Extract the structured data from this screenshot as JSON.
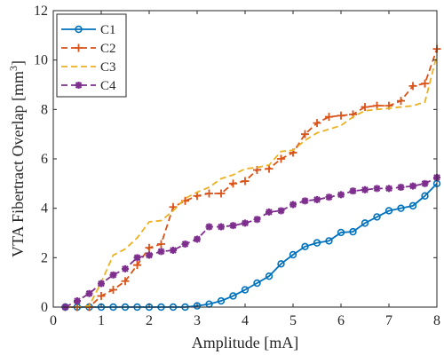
{
  "chart_data": {
    "type": "line",
    "title": "",
    "xlabel": "Amplitude [mA]",
    "ylabel_main": "VTA Fibertract Overlap [mm",
    "ylabel_sup": "3",
    "ylabel_close": "]",
    "xlim": [
      0,
      8
    ],
    "ylim": [
      0,
      12
    ],
    "xticks": [
      0,
      1,
      2,
      3,
      4,
      5,
      6,
      7,
      8
    ],
    "yticks": [
      0,
      2,
      4,
      6,
      8,
      10,
      12
    ],
    "xtick_labels": [
      "0",
      "1",
      "2",
      "3",
      "4",
      "5",
      "6",
      "7",
      "8"
    ],
    "ytick_labels": [
      "0",
      "2",
      "4",
      "6",
      "8",
      "10",
      "12"
    ],
    "grid": false,
    "legend_position": "top-left",
    "series": [
      {
        "name": "C1",
        "color": "#0072BD",
        "marker": "circle",
        "dash": "solid",
        "x": [
          0.25,
          0.5,
          0.75,
          1.0,
          1.25,
          1.5,
          1.75,
          2.0,
          2.25,
          2.5,
          2.75,
          3.0,
          3.25,
          3.5,
          3.75,
          4.0,
          4.25,
          4.5,
          4.75,
          5.0,
          5.25,
          5.5,
          5.75,
          6.0,
          6.25,
          6.5,
          6.75,
          7.0,
          7.25,
          7.5,
          7.75,
          8.0
        ],
        "y": [
          0,
          0,
          0,
          0,
          0,
          0,
          0,
          0,
          0,
          0,
          0,
          0.05,
          0.12,
          0.25,
          0.45,
          0.7,
          0.97,
          1.25,
          1.75,
          2.12,
          2.45,
          2.6,
          2.68,
          3.02,
          3.05,
          3.4,
          3.65,
          3.9,
          4.0,
          4.1,
          4.5,
          5.0
        ]
      },
      {
        "name": "C2",
        "color": "#D95319",
        "marker": "plus",
        "dash": "dashed",
        "x": [
          0.25,
          0.5,
          0.75,
          1.0,
          1.25,
          1.5,
          1.75,
          2.0,
          2.25,
          2.5,
          2.75,
          3.0,
          3.25,
          3.5,
          3.75,
          4.0,
          4.25,
          4.5,
          4.75,
          5.0,
          5.25,
          5.5,
          5.75,
          6.0,
          6.25,
          6.5,
          6.75,
          7.0,
          7.25,
          7.5,
          7.75,
          8.0
        ],
        "y": [
          0,
          0,
          0,
          0.45,
          0.7,
          1.05,
          1.7,
          2.4,
          2.55,
          4.05,
          4.3,
          4.5,
          4.6,
          4.6,
          5.0,
          5.1,
          5.55,
          5.6,
          6.0,
          6.25,
          7.0,
          7.45,
          7.7,
          7.75,
          7.8,
          8.1,
          8.15,
          8.15,
          8.35,
          8.95,
          9.05,
          10.45
        ]
      },
      {
        "name": "C3",
        "color": "#EDB120",
        "marker": "none",
        "dash": "dashed",
        "x": [
          0.25,
          0.5,
          0.75,
          1.0,
          1.25,
          1.5,
          1.75,
          2.0,
          2.25,
          2.5,
          2.75,
          3.0,
          3.25,
          3.5,
          3.75,
          4.0,
          4.25,
          4.5,
          4.75,
          5.0,
          5.25,
          5.5,
          5.75,
          6.0,
          6.25,
          6.5,
          6.75,
          7.0,
          7.25,
          7.5,
          7.75,
          8.0
        ],
        "y": [
          0,
          0,
          0.05,
          1.0,
          2.1,
          2.35,
          2.8,
          3.45,
          3.5,
          3.9,
          4.4,
          4.65,
          4.85,
          5.2,
          5.35,
          5.6,
          5.65,
          5.75,
          6.3,
          6.35,
          6.75,
          7.05,
          7.2,
          7.35,
          7.7,
          7.95,
          8.0,
          8.05,
          8.1,
          8.15,
          8.3,
          10.2
        ]
      },
      {
        "name": "C4",
        "color": "#7E2F8E",
        "marker": "star",
        "dash": "dashed",
        "x": [
          0.25,
          0.5,
          0.75,
          1.0,
          1.25,
          1.5,
          1.75,
          2.0,
          2.25,
          2.5,
          2.75,
          3.0,
          3.25,
          3.5,
          3.75,
          4.0,
          4.25,
          4.5,
          4.75,
          5.0,
          5.25,
          5.5,
          5.75,
          6.0,
          6.25,
          6.5,
          6.75,
          7.0,
          7.25,
          7.5,
          7.75,
          8.0
        ],
        "y": [
          0,
          0.25,
          0.55,
          0.95,
          1.3,
          1.55,
          2.0,
          2.1,
          2.25,
          2.3,
          2.55,
          2.75,
          3.25,
          3.25,
          3.3,
          3.4,
          3.55,
          3.85,
          3.9,
          4.15,
          4.3,
          4.35,
          4.45,
          4.55,
          4.7,
          4.75,
          4.8,
          4.8,
          4.85,
          4.9,
          5.0,
          5.25
        ]
      }
    ]
  }
}
